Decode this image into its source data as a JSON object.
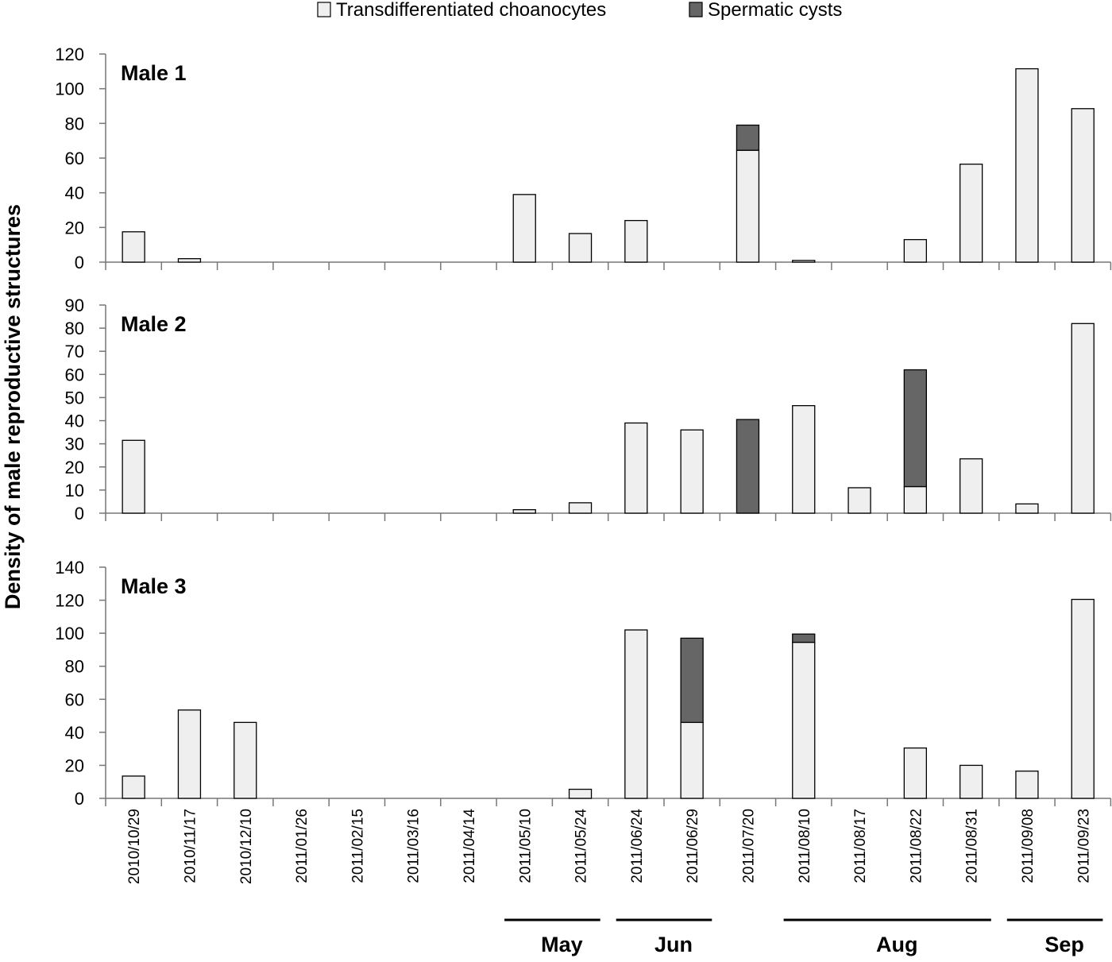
{
  "chart_data": {
    "type": "bar",
    "stacked": true,
    "ylabel": "Density of male reproductive structures",
    "categories": [
      "2010/10/29",
      "2010/11/17",
      "2010/12/10",
      "2011/01/26",
      "2011/02/15",
      "2011/03/16",
      "2011/04/14",
      "2011/05/10",
      "2011/05/24",
      "2011/06/24",
      "2011/06/29",
      "2011/07/20",
      "2011/08/10",
      "2011/08/17",
      "2011/08/22",
      "2011/08/31",
      "2011/09/08",
      "2011/09/23"
    ],
    "legend": [
      {
        "name": "Transdifferentiated choanocytes",
        "color": "#efefef"
      },
      {
        "name": "Spermatic cysts",
        "color": "#666666"
      }
    ],
    "panels": [
      {
        "title": "Male 1",
        "ylim": [
          0,
          120
        ],
        "ticks": [
          0,
          20,
          40,
          60,
          80,
          100,
          120
        ],
        "series": [
          {
            "name": "Transdifferentiated choanocytes",
            "values": [
              17.5,
              2,
              0,
              0,
              0,
              0,
              0,
              39,
              16.5,
              24,
              0,
              64.5,
              1,
              0,
              13,
              56.5,
              111.5,
              88.5
            ]
          },
          {
            "name": "Spermatic cysts",
            "values": [
              0,
              0,
              0,
              0,
              0,
              0,
              0,
              0,
              0,
              0,
              0,
              14.5,
              0,
              0,
              0,
              0,
              0,
              0
            ]
          }
        ]
      },
      {
        "title": "Male 2",
        "ylim": [
          0,
          90
        ],
        "ticks": [
          0,
          10,
          20,
          30,
          40,
          50,
          60,
          70,
          80,
          90
        ],
        "series": [
          {
            "name": "Transdifferentiated choanocytes",
            "values": [
              31.5,
              0,
              0,
              0,
              0,
              0,
              0,
              1.5,
              4.5,
              39,
              36,
              0,
              46.5,
              11,
              11.5,
              23.5,
              4,
              82
            ]
          },
          {
            "name": "Spermatic cysts",
            "values": [
              0,
              0,
              0,
              0,
              0,
              0,
              0,
              0,
              0,
              0,
              0,
              40.5,
              0,
              0,
              50.5,
              0,
              0,
              0
            ]
          }
        ]
      },
      {
        "title": "Male 3",
        "ylim": [
          0,
          140
        ],
        "ticks": [
          0,
          20,
          40,
          60,
          80,
          100,
          120,
          140
        ],
        "series": [
          {
            "name": "Transdifferentiated choanocytes",
            "values": [
              13.5,
              53.5,
              46,
              0,
              0,
              0,
              0,
              0,
              5.5,
              102,
              46,
              0,
              94.5,
              0,
              30.5,
              20,
              16.5,
              120.5
            ]
          },
          {
            "name": "Spermatic cysts",
            "values": [
              0,
              0,
              0,
              0,
              0,
              0,
              0,
              0,
              0,
              0,
              51,
              0,
              5,
              0,
              0,
              0,
              0,
              0
            ]
          }
        ]
      }
    ],
    "month_groups": [
      {
        "label": "May",
        "from": 7,
        "to": 8
      },
      {
        "label": "Jun",
        "from": 9,
        "to": 10
      },
      {
        "label": "Aug",
        "from": 12,
        "to": 15
      },
      {
        "label": "Sep",
        "from": 16,
        "to": 17
      }
    ]
  }
}
